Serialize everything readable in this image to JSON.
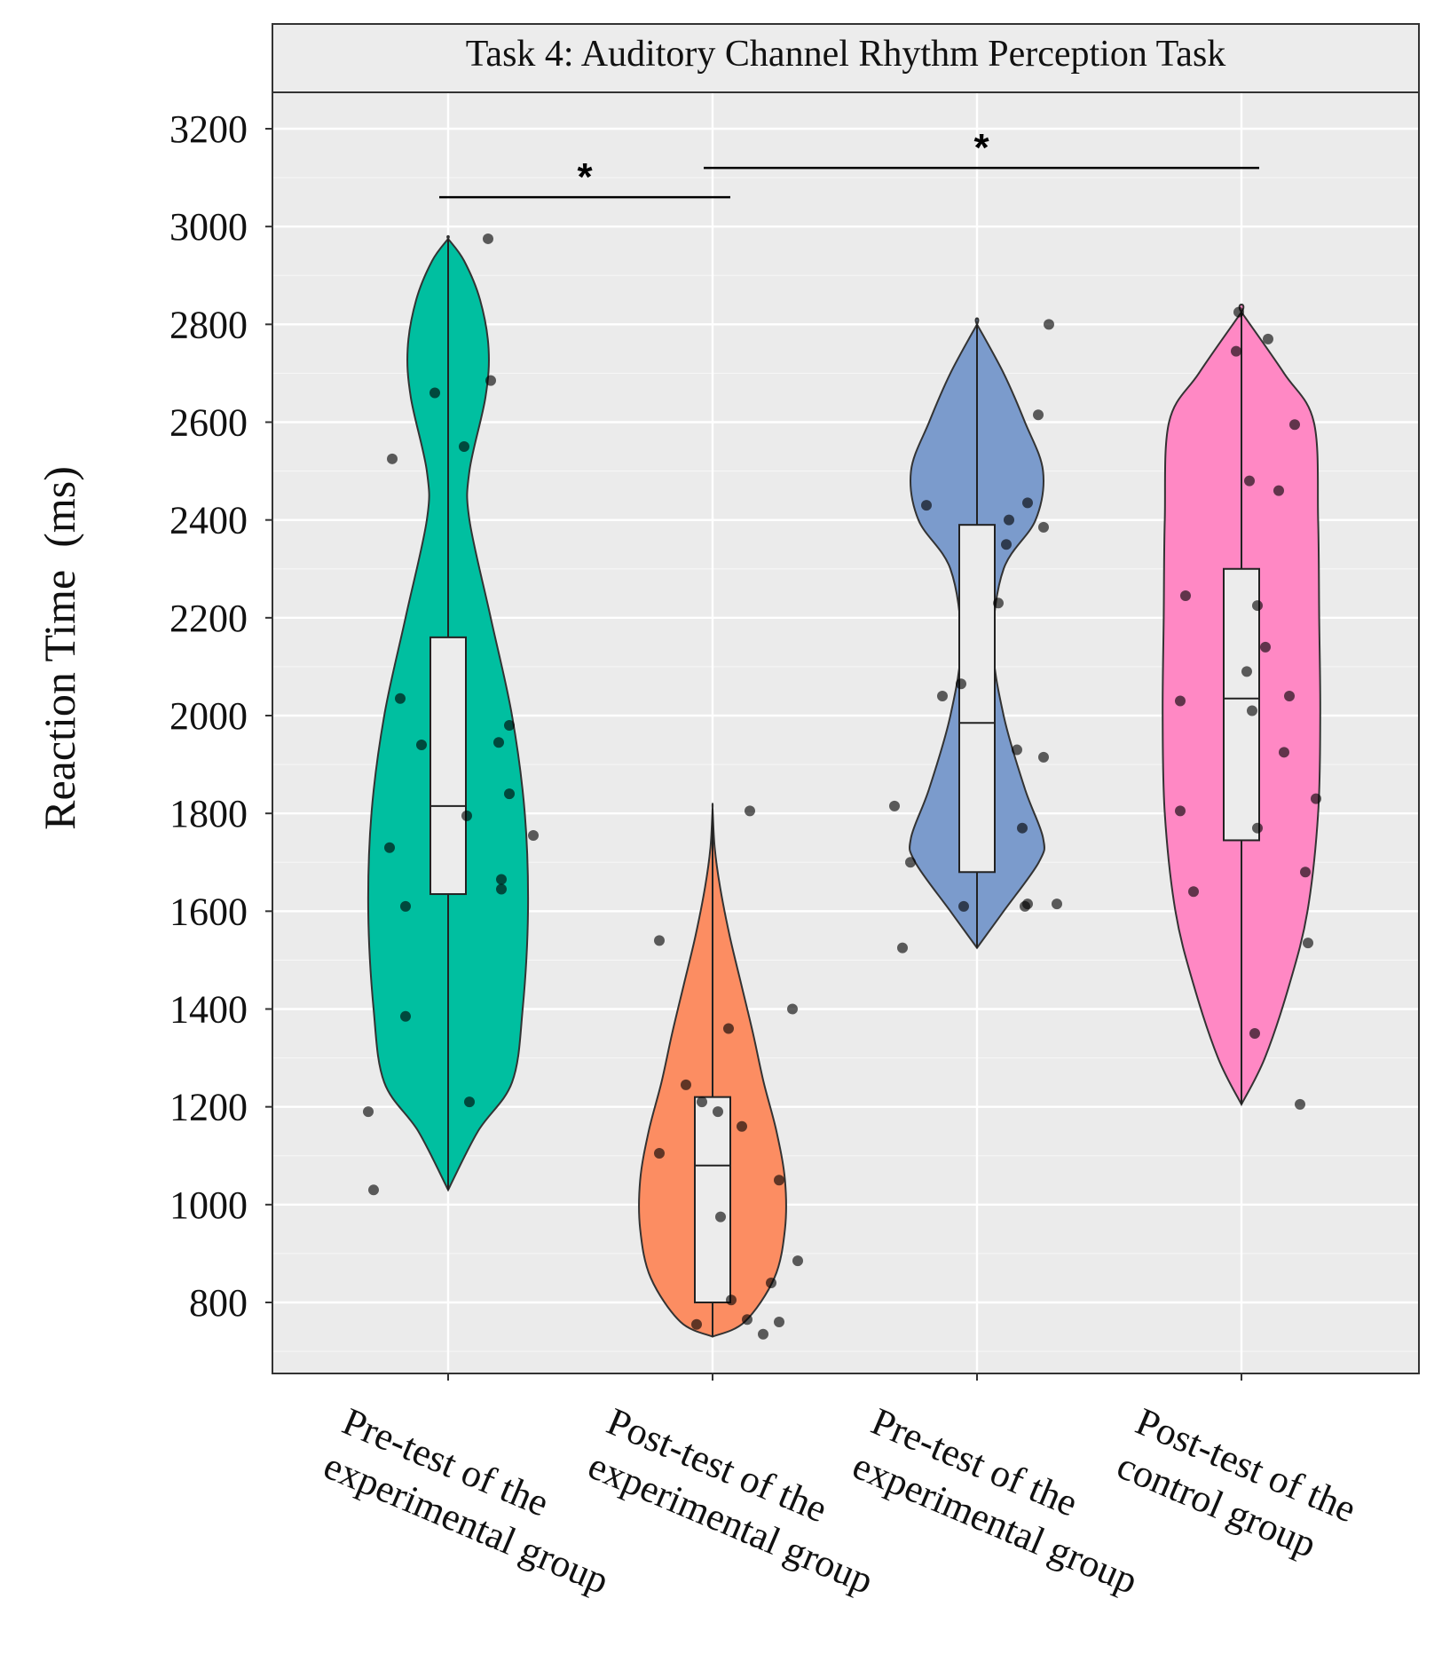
{
  "chart_data": {
    "type": "violin",
    "title": "Task 4: Auditory Channel Rhythm Perception Task",
    "xlabel": "",
    "ylabel": "Reaction Time  (ms)",
    "ylim": [
      700,
      3300
    ],
    "yticks": [
      800,
      1000,
      1200,
      1400,
      1600,
      1800,
      2000,
      2200,
      2400,
      2600,
      2800,
      3000,
      3200
    ],
    "grid": true,
    "categories": [
      [
        "Pre-test of the",
        "experimental group"
      ],
      [
        "Post-test of the",
        "experimental group"
      ],
      [
        "Pre-test of the",
        "experimental group"
      ],
      [
        "Post-test of the",
        "control group"
      ]
    ],
    "series": [
      {
        "name": "Pre-test of the experimental group",
        "color": "#00BFA0",
        "violin_range": [
          1030,
          2975
        ],
        "box": {
          "q1": 1635,
          "median": 1815,
          "q3": 2160
        },
        "density": [
          [
            1030,
            0.0
          ],
          [
            1150,
            0.28
          ],
          [
            1250,
            0.6
          ],
          [
            1400,
            0.7
          ],
          [
            1600,
            0.75
          ],
          [
            1800,
            0.72
          ],
          [
            2000,
            0.6
          ],
          [
            2200,
            0.4
          ],
          [
            2400,
            0.2
          ],
          [
            2500,
            0.2
          ],
          [
            2650,
            0.35
          ],
          [
            2750,
            0.38
          ],
          [
            2850,
            0.3
          ],
          [
            2930,
            0.15
          ],
          [
            2975,
            0.0
          ]
        ],
        "points": [
          [
            -0.3,
            1190
          ],
          [
            -0.28,
            1030
          ],
          [
            -0.22,
            1730
          ],
          [
            -0.18,
            2035
          ],
          [
            -0.16,
            1610
          ],
          [
            -0.16,
            1385
          ],
          [
            -0.1,
            1940
          ],
          [
            -0.05,
            2660
          ],
          [
            0.06,
            2550
          ],
          [
            0.07,
            1795
          ],
          [
            0.08,
            1210
          ],
          [
            0.15,
            2975
          ],
          [
            0.16,
            2685
          ],
          [
            0.19,
            1945
          ],
          [
            0.2,
            1665
          ],
          [
            0.2,
            1645
          ],
          [
            0.23,
            1980
          ],
          [
            0.23,
            1840
          ],
          [
            0.32,
            1755
          ],
          [
            -0.21,
            2525
          ]
        ]
      },
      {
        "name": "Post-test of the experimental group",
        "color": "#FC8D62",
        "violin_range": [
          730,
          1810
        ],
        "box": {
          "q1": 800,
          "median": 1080,
          "q3": 1220
        },
        "density": [
          [
            730,
            0.0
          ],
          [
            760,
            0.3
          ],
          [
            850,
            0.58
          ],
          [
            950,
            0.68
          ],
          [
            1050,
            0.68
          ],
          [
            1150,
            0.6
          ],
          [
            1250,
            0.48
          ],
          [
            1350,
            0.38
          ],
          [
            1450,
            0.27
          ],
          [
            1550,
            0.16
          ],
          [
            1650,
            0.07
          ],
          [
            1730,
            0.02
          ],
          [
            1810,
            0.0
          ]
        ],
        "points": [
          [
            -0.2,
            1540
          ],
          [
            -0.2,
            1105
          ],
          [
            -0.1,
            1245
          ],
          [
            -0.06,
            755
          ],
          [
            -0.04,
            1210
          ],
          [
            0.02,
            1190
          ],
          [
            0.03,
            975
          ],
          [
            0.06,
            1360
          ],
          [
            0.07,
            805
          ],
          [
            0.11,
            1160
          ],
          [
            0.13,
            765
          ],
          [
            0.14,
            1805
          ],
          [
            0.19,
            735
          ],
          [
            0.22,
            840
          ],
          [
            0.25,
            760
          ],
          [
            0.25,
            1050
          ],
          [
            0.3,
            1400
          ],
          [
            0.32,
            885
          ]
        ]
      },
      {
        "name": "Pre-test of the experimental group",
        "color": "#7B9BCC",
        "violin_range": [
          1525,
          2800
        ],
        "box": {
          "q1": 1680,
          "median": 1985,
          "q3": 2390
        },
        "density": [
          [
            1525,
            0.0
          ],
          [
            1600,
            0.25
          ],
          [
            1700,
            0.58
          ],
          [
            1750,
            0.62
          ],
          [
            1850,
            0.45
          ],
          [
            2000,
            0.25
          ],
          [
            2150,
            0.15
          ],
          [
            2300,
            0.25
          ],
          [
            2400,
            0.55
          ],
          [
            2500,
            0.62
          ],
          [
            2600,
            0.45
          ],
          [
            2700,
            0.25
          ],
          [
            2800,
            0.0
          ]
        ],
        "points": [
          [
            -0.31,
            1815
          ],
          [
            -0.28,
            1525
          ],
          [
            -0.25,
            1700
          ],
          [
            -0.19,
            2430
          ],
          [
            -0.13,
            2040
          ],
          [
            -0.06,
            2065
          ],
          [
            -0.05,
            1610
          ],
          [
            0.08,
            2230
          ],
          [
            0.11,
            2350
          ],
          [
            0.12,
            2400
          ],
          [
            0.15,
            1930
          ],
          [
            0.17,
            1770
          ],
          [
            0.18,
            1610
          ],
          [
            0.19,
            2435
          ],
          [
            0.19,
            1615
          ],
          [
            0.23,
            2615
          ],
          [
            0.25,
            2385
          ],
          [
            0.25,
            1915
          ],
          [
            0.27,
            2800
          ],
          [
            0.3,
            1615
          ]
        ]
      },
      {
        "name": "Post-test of the control group",
        "color": "#FF88C4",
        "violin_range": [
          1205,
          2825
        ],
        "box": {
          "q1": 1745,
          "median": 2035,
          "q3": 2300
        },
        "density": [
          [
            1205,
            0.0
          ],
          [
            1300,
            0.22
          ],
          [
            1450,
            0.45
          ],
          [
            1600,
            0.62
          ],
          [
            1800,
            0.72
          ],
          [
            2000,
            0.74
          ],
          [
            2200,
            0.73
          ],
          [
            2400,
            0.72
          ],
          [
            2600,
            0.68
          ],
          [
            2700,
            0.4
          ],
          [
            2825,
            0.0
          ]
        ],
        "points": [
          [
            -0.23,
            1805
          ],
          [
            -0.23,
            2030
          ],
          [
            -0.21,
            2245
          ],
          [
            -0.18,
            1640
          ],
          [
            -0.02,
            2745
          ],
          [
            -0.01,
            2825
          ],
          [
            0.02,
            2090
          ],
          [
            0.03,
            2480
          ],
          [
            0.04,
            2010
          ],
          [
            0.05,
            1350
          ],
          [
            0.06,
            2225
          ],
          [
            0.06,
            1770
          ],
          [
            0.09,
            2140
          ],
          [
            0.1,
            2770
          ],
          [
            0.14,
            2460
          ],
          [
            0.16,
            1925
          ],
          [
            0.18,
            2040
          ],
          [
            0.2,
            2595
          ],
          [
            0.22,
            1205
          ],
          [
            0.24,
            1680
          ],
          [
            0.25,
            1535
          ],
          [
            0.28,
            1830
          ]
        ]
      }
    ],
    "annotations": [
      {
        "label": "*",
        "from": 0,
        "to": 1,
        "y": 3060
      },
      {
        "label": "*",
        "from": 1,
        "to": 3,
        "y": 3120
      }
    ]
  }
}
